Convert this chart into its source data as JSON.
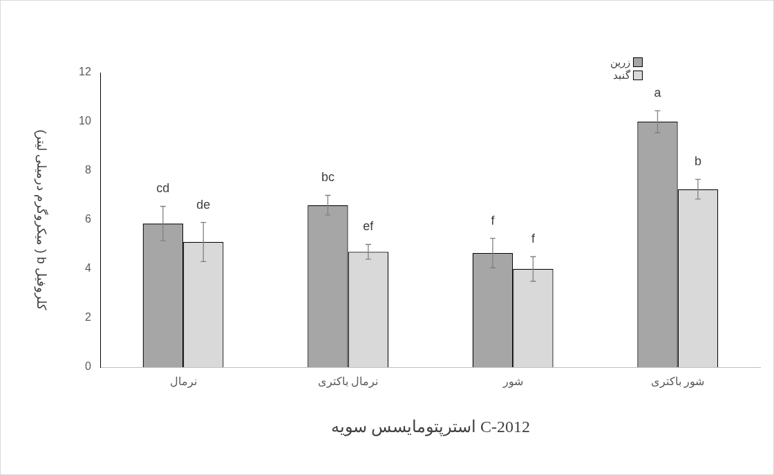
{
  "chart_data": {
    "type": "bar",
    "xlabel": "استرپتومایسس سویه C-2012",
    "ylabel": "کلروفیل b ( میکروگرم درمیلی لیتر)",
    "categories": [
      "نرمال",
      "نرمال باکتری",
      "شور",
      "شور باکتری"
    ],
    "series": [
      {
        "name": "زرین",
        "color": "#a6a6a6",
        "values": [
          5.85,
          6.6,
          4.65,
          10.0
        ],
        "errors": [
          0.7,
          0.4,
          0.6,
          0.45
        ],
        "value_labels": [
          "cd",
          "bc",
          "f",
          "a"
        ]
      },
      {
        "name": "گنبد",
        "color": "#d9d9d9",
        "values": [
          5.1,
          4.7,
          4.0,
          7.25
        ],
        "errors": [
          0.8,
          0.3,
          0.5,
          0.4
        ],
        "value_labels": [
          "de",
          "ef",
          "f",
          "b"
        ]
      }
    ],
    "ylim": [
      0,
      12
    ],
    "yticks": [
      0,
      2,
      4,
      6,
      8,
      10,
      12
    ],
    "grid": false,
    "legend": "top right"
  }
}
